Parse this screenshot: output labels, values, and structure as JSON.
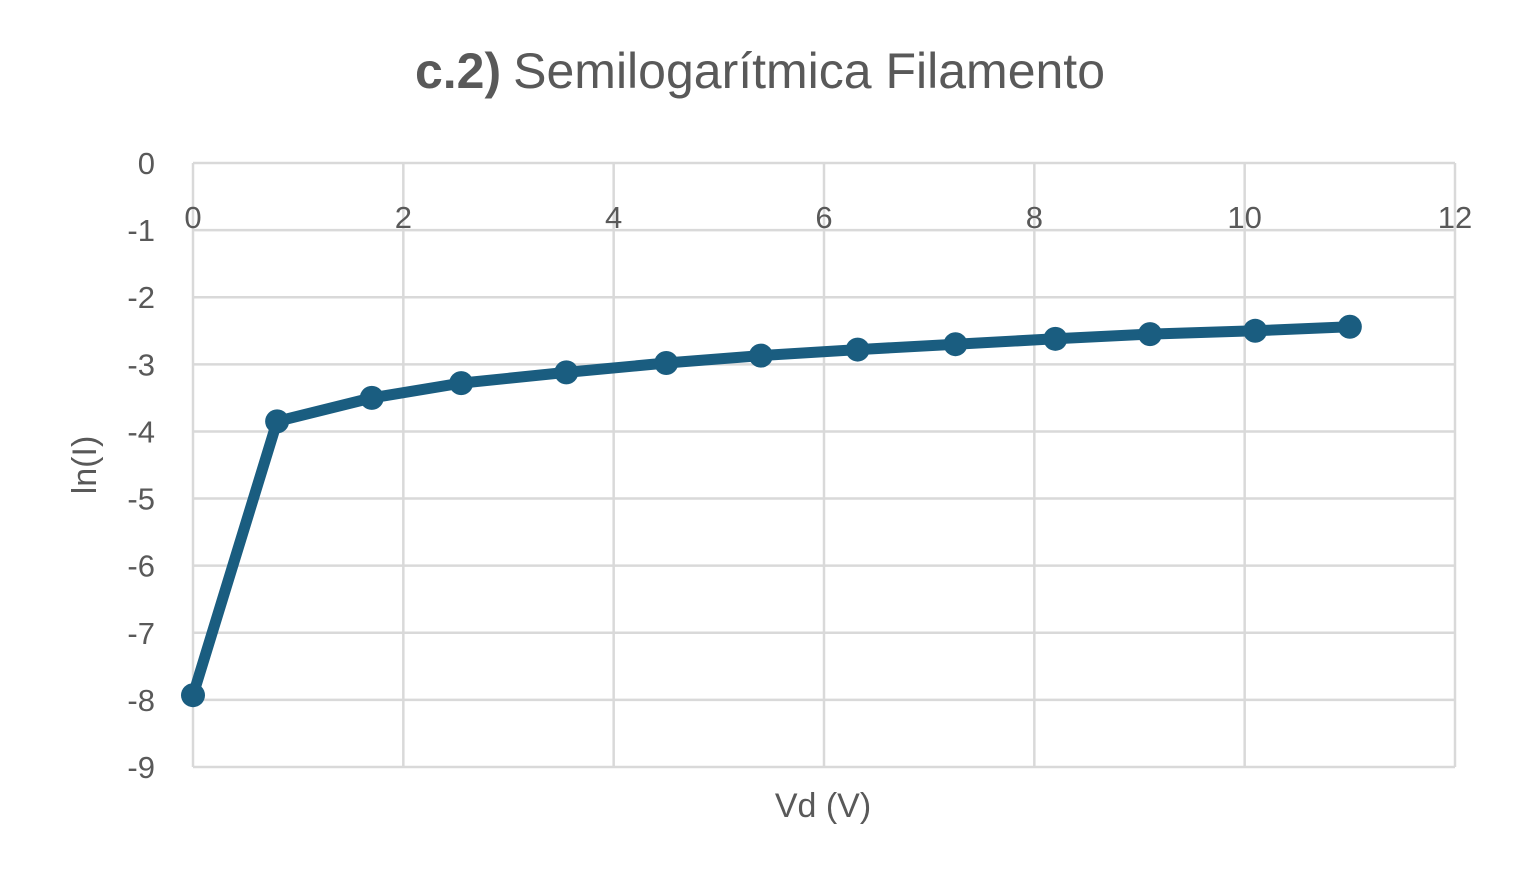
{
  "chart_data": {
    "type": "line",
    "title_bold": "c.2)",
    "title_rest": "Semilogarítmica Filamento",
    "xlabel": "Vd (V)",
    "ylabel": "ln(I)",
    "xlim": [
      0,
      12
    ],
    "ylim": [
      -9,
      0
    ],
    "x_ticks": [
      "0",
      "2",
      "4",
      "6",
      "8",
      "10",
      "12"
    ],
    "y_ticks": [
      "0",
      "-1",
      "-2",
      "-3",
      "-4",
      "-5",
      "-6",
      "-7",
      "-8",
      "-9"
    ],
    "grid": true,
    "color": "#1a5d80",
    "series": [
      {
        "x": [
          0,
          0.8,
          1.7,
          2.55,
          3.55,
          4.5,
          5.4,
          6.32,
          7.25,
          8.2,
          9.1,
          10.1,
          11.0
        ],
        "y": [
          -7.93,
          -3.85,
          -3.5,
          -3.28,
          -3.12,
          -2.98,
          -2.87,
          -2.78,
          -2.7,
          -2.62,
          -2.55,
          -2.5,
          -2.44
        ]
      }
    ]
  }
}
